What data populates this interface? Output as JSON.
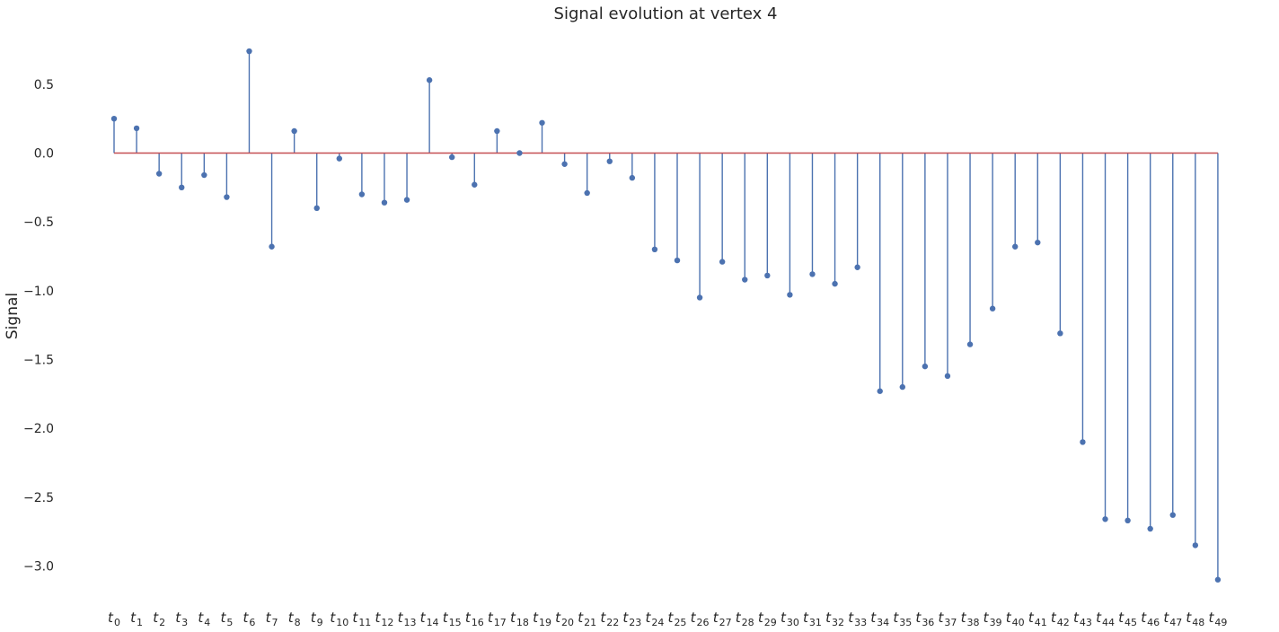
{
  "chart_data": {
    "type": "stem",
    "title": "Signal evolution at vertex 4",
    "ylabel": "Signal",
    "xlabel": "",
    "ylim": [
      -3.28,
      0.83
    ],
    "yticks": [
      0.5,
      0.0,
      -0.5,
      -1.0,
      -1.5,
      -2.0,
      -2.5,
      -3.0
    ],
    "ytick_labels": [
      "0.5",
      "0.0",
      "−0.5",
      "−1.0",
      "−1.5",
      "−2.0",
      "−2.5",
      "−3.0"
    ],
    "grid": false,
    "baseline": 0,
    "colors": {
      "stem": "#4c72b0",
      "marker": "#4c72b0",
      "baseline": "#c44e52"
    },
    "x_base": "t",
    "x_subscripts": [
      "0",
      "1",
      "2",
      "3",
      "4",
      "5",
      "6",
      "7",
      "8",
      "9",
      "10",
      "11",
      "12",
      "13",
      "14",
      "15",
      "16",
      "17",
      "18",
      "19",
      "20",
      "21",
      "22",
      "23",
      "24",
      "25",
      "26",
      "27",
      "28",
      "29",
      "30",
      "31",
      "32",
      "33",
      "34",
      "35",
      "36",
      "37",
      "38",
      "39",
      "40",
      "41",
      "42",
      "43",
      "44",
      "45",
      "46",
      "47",
      "48",
      "49"
    ],
    "values": [
      0.25,
      0.18,
      -0.15,
      -0.25,
      -0.16,
      -0.32,
      0.74,
      -0.68,
      0.16,
      -0.4,
      -0.04,
      -0.3,
      -0.36,
      -0.34,
      0.53,
      -0.03,
      -0.23,
      0.16,
      0.0,
      0.22,
      -0.08,
      -0.29,
      -0.06,
      -0.18,
      -0.7,
      -0.78,
      -1.05,
      -0.79,
      -0.92,
      -0.89,
      -1.03,
      -0.88,
      -0.95,
      -0.83,
      -1.73,
      -1.7,
      -1.55,
      -1.62,
      -1.39,
      -1.13,
      -0.68,
      -0.65,
      -1.31,
      -2.1,
      -2.66,
      -2.67,
      -2.73,
      -2.63,
      -2.85,
      -3.1
    ]
  }
}
